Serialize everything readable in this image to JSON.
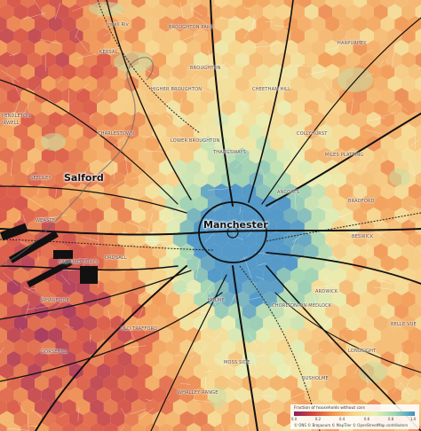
{
  "map": {
    "cities": [
      {
        "id": "salford",
        "name": "Salford"
      },
      {
        "id": "manchester",
        "name": "Manchester"
      }
    ],
    "places": [
      {
        "id": "broughton-park",
        "name": "BROUGHTON PARK"
      },
      {
        "id": "irwell-riv",
        "name": "Irwell Riv"
      },
      {
        "id": "kersal",
        "name": "KERSAL"
      },
      {
        "id": "harpurhey",
        "name": "HARPURHEY"
      },
      {
        "id": "broughton",
        "name": "BROUGHTON"
      },
      {
        "id": "higher-broughton",
        "name": "HIGHER BROUGHTON"
      },
      {
        "id": "cheetham-hill",
        "name": "CHEETHAM HILL"
      },
      {
        "id": "charlestown",
        "name": "CHARLESTOWN"
      },
      {
        "id": "collyhurst",
        "name": "COLLYHURST"
      },
      {
        "id": "lower-broughton",
        "name": "LOWER BROUGHTON"
      },
      {
        "id": "pendleton",
        "name": "PENDLETON"
      },
      {
        "id": "irwell",
        "name": "IRWELL"
      },
      {
        "id": "thangsways",
        "name": "THANGSWAYS"
      },
      {
        "id": "miles-platting",
        "name": "MILES PLATTING"
      },
      {
        "id": "seedley",
        "name": "SEEDLEY"
      },
      {
        "id": "ancoats",
        "name": "ANCOATS"
      },
      {
        "id": "bradford",
        "name": "BRADFORD"
      },
      {
        "id": "weaste",
        "name": "WEASTE"
      },
      {
        "id": "beswick",
        "name": "BESWICK"
      },
      {
        "id": "ordsall",
        "name": "ORDSALL"
      },
      {
        "id": "salford-quays",
        "name": "SALFORD QUAYS"
      },
      {
        "id": "hulme",
        "name": "HULME"
      },
      {
        "id": "ardwick",
        "name": "ARDWICK"
      },
      {
        "id": "chorlton-on-medlock",
        "name": "CHORLTON-ON-MEDLOCK"
      },
      {
        "id": "whalebone",
        "name": "WHARFSIDE"
      },
      {
        "id": "old-trafford",
        "name": "OLD TRAFFORD"
      },
      {
        "id": "belle-vue",
        "name": "BELLE VUE"
      },
      {
        "id": "gorseyhill",
        "name": "GORSEHILL"
      },
      {
        "id": "longsight",
        "name": "LONGSIGHT"
      },
      {
        "id": "moss-side",
        "name": "MOSS SIDE"
      },
      {
        "id": "rusholme",
        "name": "RUSHOLME"
      },
      {
        "id": "whalley-range",
        "name": "WHALLEY RANGE"
      }
    ]
  },
  "legend": {
    "title": "Fraction of households without cars",
    "ticks": [
      "0.0",
      "0.2",
      "0.4",
      "0.6",
      "0.8",
      "1.0"
    ],
    "attribution": "© ONS © Bropaeum © MapTiler © OpenStreetMap contributors"
  },
  "colors": {
    "low": "#8c1c5c",
    "mid": "#f7d68a",
    "high": "#3f8fc8",
    "base": "#f3e6c8"
  }
}
